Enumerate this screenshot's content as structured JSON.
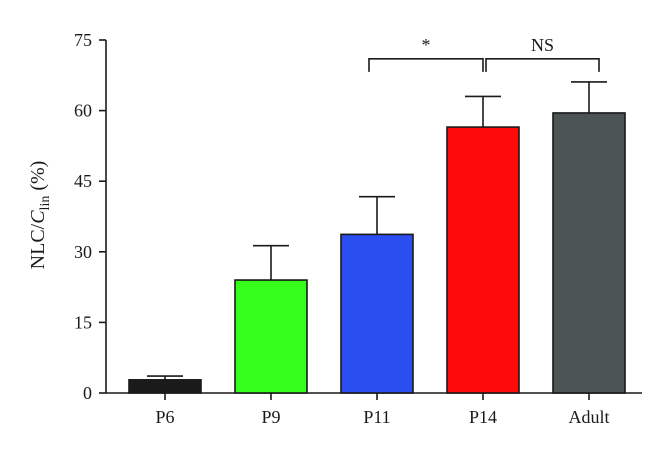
{
  "chart_data": {
    "type": "bar",
    "title": "",
    "xlabel": "",
    "ylabel": {
      "main": "NLC/",
      "italic": "C",
      "subscript": "lin",
      "unit": " (%)"
    },
    "ylim": [
      0,
      75
    ],
    "yticks": [
      0,
      15,
      30,
      45,
      60,
      75
    ],
    "categories": [
      "P6",
      "P9",
      "P11",
      "P14",
      "Adult"
    ],
    "values": [
      2.8,
      24.0,
      33.7,
      56.5,
      59.5
    ],
    "errors": [
      0.8,
      7.3,
      8.0,
      6.5,
      6.6
    ],
    "colors": [
      "#1a1a1a",
      "#33ff1a",
      "#2b4ef0",
      "#ff0a0a",
      "#4d5554"
    ],
    "significance": [
      {
        "from": "P11",
        "to": "P14",
        "label": "*",
        "level": 71
      },
      {
        "from": "P14",
        "to": "Adult",
        "label": "NS",
        "level": 71
      }
    ]
  }
}
